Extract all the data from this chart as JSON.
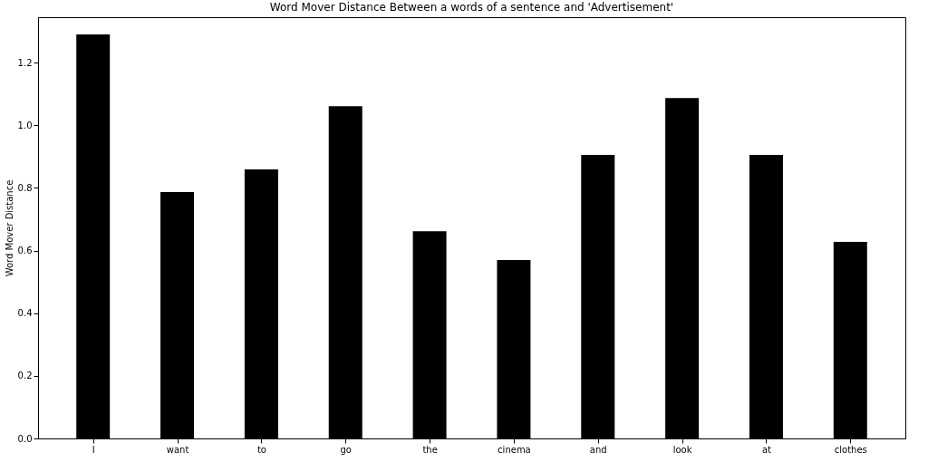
{
  "chart_data": {
    "type": "bar",
    "title": "Word Mover Distance Between a words of a sentence and 'Advertisement'",
    "ylabel": "Word Mover Distance",
    "categories": [
      "I",
      "want",
      "to",
      "go",
      "the",
      "cinema",
      "and",
      "look",
      "at",
      "clothes"
    ],
    "values": [
      1.29,
      0.787,
      0.859,
      1.061,
      0.662,
      0.57,
      0.905,
      1.087,
      0.905,
      0.628
    ],
    "color": "#000000",
    "ylim": [
      0,
      1.345
    ],
    "yticks": [
      {
        "value": 0,
        "label": "0.0"
      },
      {
        "value": 0.2,
        "label": "0.2"
      },
      {
        "value": 0.4,
        "label": "0.4"
      },
      {
        "value": 0.6,
        "label": "0.6"
      },
      {
        "value": 0.8,
        "label": "0.8"
      },
      {
        "value": 1.0,
        "label": "1.0"
      },
      {
        "value": 1.2,
        "label": "1.2"
      }
    ],
    "grid": false
  }
}
